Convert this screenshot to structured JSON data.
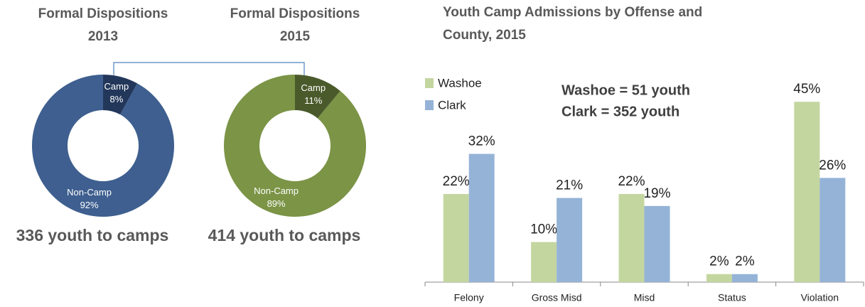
{
  "chart_data": [
    {
      "type": "pie",
      "title": [
        "Formal Dispositions",
        "2013"
      ],
      "categories": [
        "Camp",
        "Non-Camp"
      ],
      "values": [
        8,
        92
      ],
      "value_labels": [
        "8%",
        "92%"
      ],
      "colors": [
        "#22375a",
        "#3e5f8f"
      ],
      "annotation": "336 youth to camps"
    },
    {
      "type": "pie",
      "title": [
        "Formal Dispositions",
        "2015"
      ],
      "categories": [
        "Camp",
        "Non-Camp"
      ],
      "values": [
        11,
        89
      ],
      "value_labels": [
        "11%",
        "89%"
      ],
      "colors": [
        "#4b5a2b",
        "#7b9446"
      ],
      "annotation": "414 youth to camps"
    },
    {
      "type": "bar",
      "title": [
        "Youth Camp Admissions by Offense and",
        "County, 2015"
      ],
      "categories": [
        "Felony",
        "Gross Misd",
        "Misd",
        "Status",
        "Violation"
      ],
      "series": [
        {
          "name": "Washoe",
          "color": "#c4d6a0",
          "values": [
            22,
            10,
            22,
            2,
            45
          ],
          "value_labels": [
            "22%",
            "10%",
            "22%",
            "2%",
            "45%"
          ]
        },
        {
          "name": "Clark",
          "color": "#95b3d7",
          "values": [
            32,
            21,
            19,
            2,
            26
          ],
          "value_labels": [
            "32%",
            "21%",
            "19%",
            "2%",
            "26%"
          ]
        }
      ],
      "ylim": [
        0,
        50
      ],
      "legend": "top-left",
      "annotations": [
        "Washoe = 51 youth",
        "Clark = 352 youth"
      ]
    }
  ]
}
